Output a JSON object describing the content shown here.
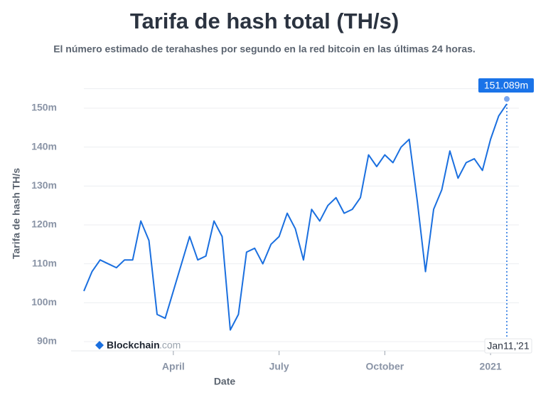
{
  "chart_data": {
    "type": "line",
    "title": "Tarifa de hash total (TH/s)",
    "subtitle": "El número estimado de terahashes por segundo en la red bitcoin en las últimas 24 horas.",
    "y_label": "Tarifa de hash TH/s",
    "x_label": "Date",
    "watermark": {
      "brand": "Blockchain",
      "suffix": ".com"
    },
    "categories": [
      null,
      null,
      null,
      null,
      null,
      null,
      null,
      null,
      null,
      null,
      null,
      "April",
      null,
      null,
      null,
      null,
      null,
      null,
      null,
      null,
      null,
      null,
      null,
      null,
      "July",
      null,
      null,
      null,
      null,
      null,
      null,
      null,
      null,
      null,
      null,
      null,
      null,
      "October",
      null,
      null,
      null,
      null,
      null,
      null,
      null,
      null,
      null,
      null,
      null,
      null,
      "2021",
      null,
      null
    ],
    "series": [
      {
        "name": "Tarifa de hash",
        "color": "#1a6fdf",
        "values": [
          103,
          108,
          111,
          110,
          109,
          111,
          111,
          121,
          116,
          97,
          96,
          103,
          110,
          117,
          111,
          112,
          121,
          117,
          93,
          97,
          113,
          114,
          110,
          115,
          117,
          123,
          119,
          111,
          124,
          121,
          125,
          127,
          123,
          124,
          127,
          138,
          135,
          138,
          136,
          140,
          142,
          126,
          108,
          124,
          129,
          139,
          132,
          136,
          137,
          134,
          142,
          148,
          151.089
        ]
      }
    ],
    "last_point": {
      "value_label": "151.089m",
      "date_label": "Jan11,'21"
    },
    "ylim": [
      90,
      155
    ],
    "yticks": [
      {
        "value": 90,
        "label": "90m"
      },
      {
        "value": 100,
        "label": "100m"
      },
      {
        "value": 110,
        "label": "110m"
      },
      {
        "value": 120,
        "label": "120m"
      },
      {
        "value": 130,
        "label": "130m"
      },
      {
        "value": 140,
        "label": "140m"
      },
      {
        "value": 150,
        "label": "150m"
      }
    ],
    "grid": true
  }
}
